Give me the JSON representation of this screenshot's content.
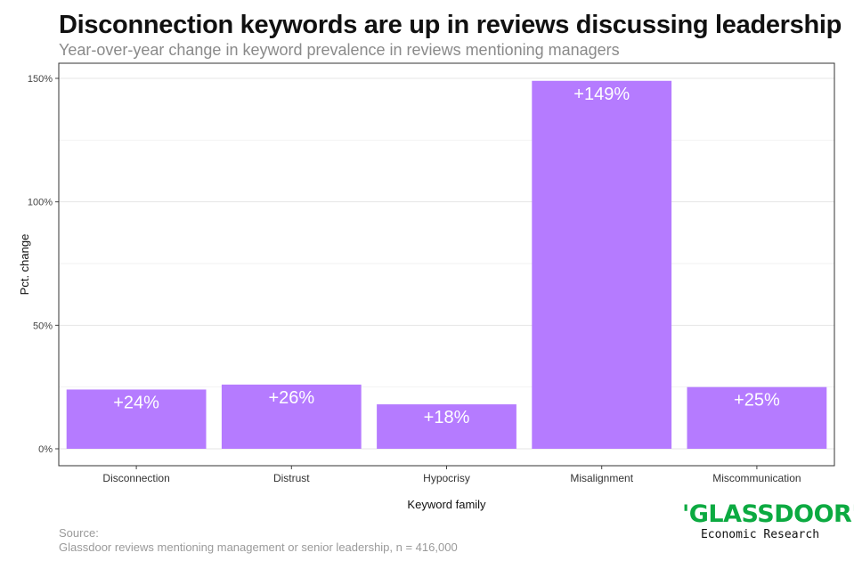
{
  "header": {
    "title": "Disconnection keywords are up in reviews discussing leadership",
    "subtitle": "Year-over-year change in keyword prevalence in reviews mentioning managers"
  },
  "chart_data": {
    "type": "bar",
    "categories": [
      "Disconnection",
      "Distrust",
      "Hypocrisy",
      "Misalignment",
      "Miscommunication"
    ],
    "values": [
      24,
      26,
      18,
      149,
      25
    ],
    "data_labels": [
      "+24%",
      "+26%",
      "+18%",
      "+149%",
      "+25%"
    ],
    "xlabel": "Keyword family",
    "ylabel": "Pct. change",
    "ylim": [
      0,
      150
    ],
    "yticks": [
      0,
      50,
      100,
      150
    ],
    "ytick_labels": [
      "0%",
      "50%",
      "100%",
      "150%"
    ],
    "bar_color": "#b57bff",
    "grid": true
  },
  "footer": {
    "source_label": "Source:",
    "source_text": "Glassdoor reviews mentioning management or senior leadership, n = 416,000"
  },
  "logo": {
    "brand": "'GLASSDOOR'",
    "tagline": "Economic Research",
    "color": "#0caa41"
  }
}
